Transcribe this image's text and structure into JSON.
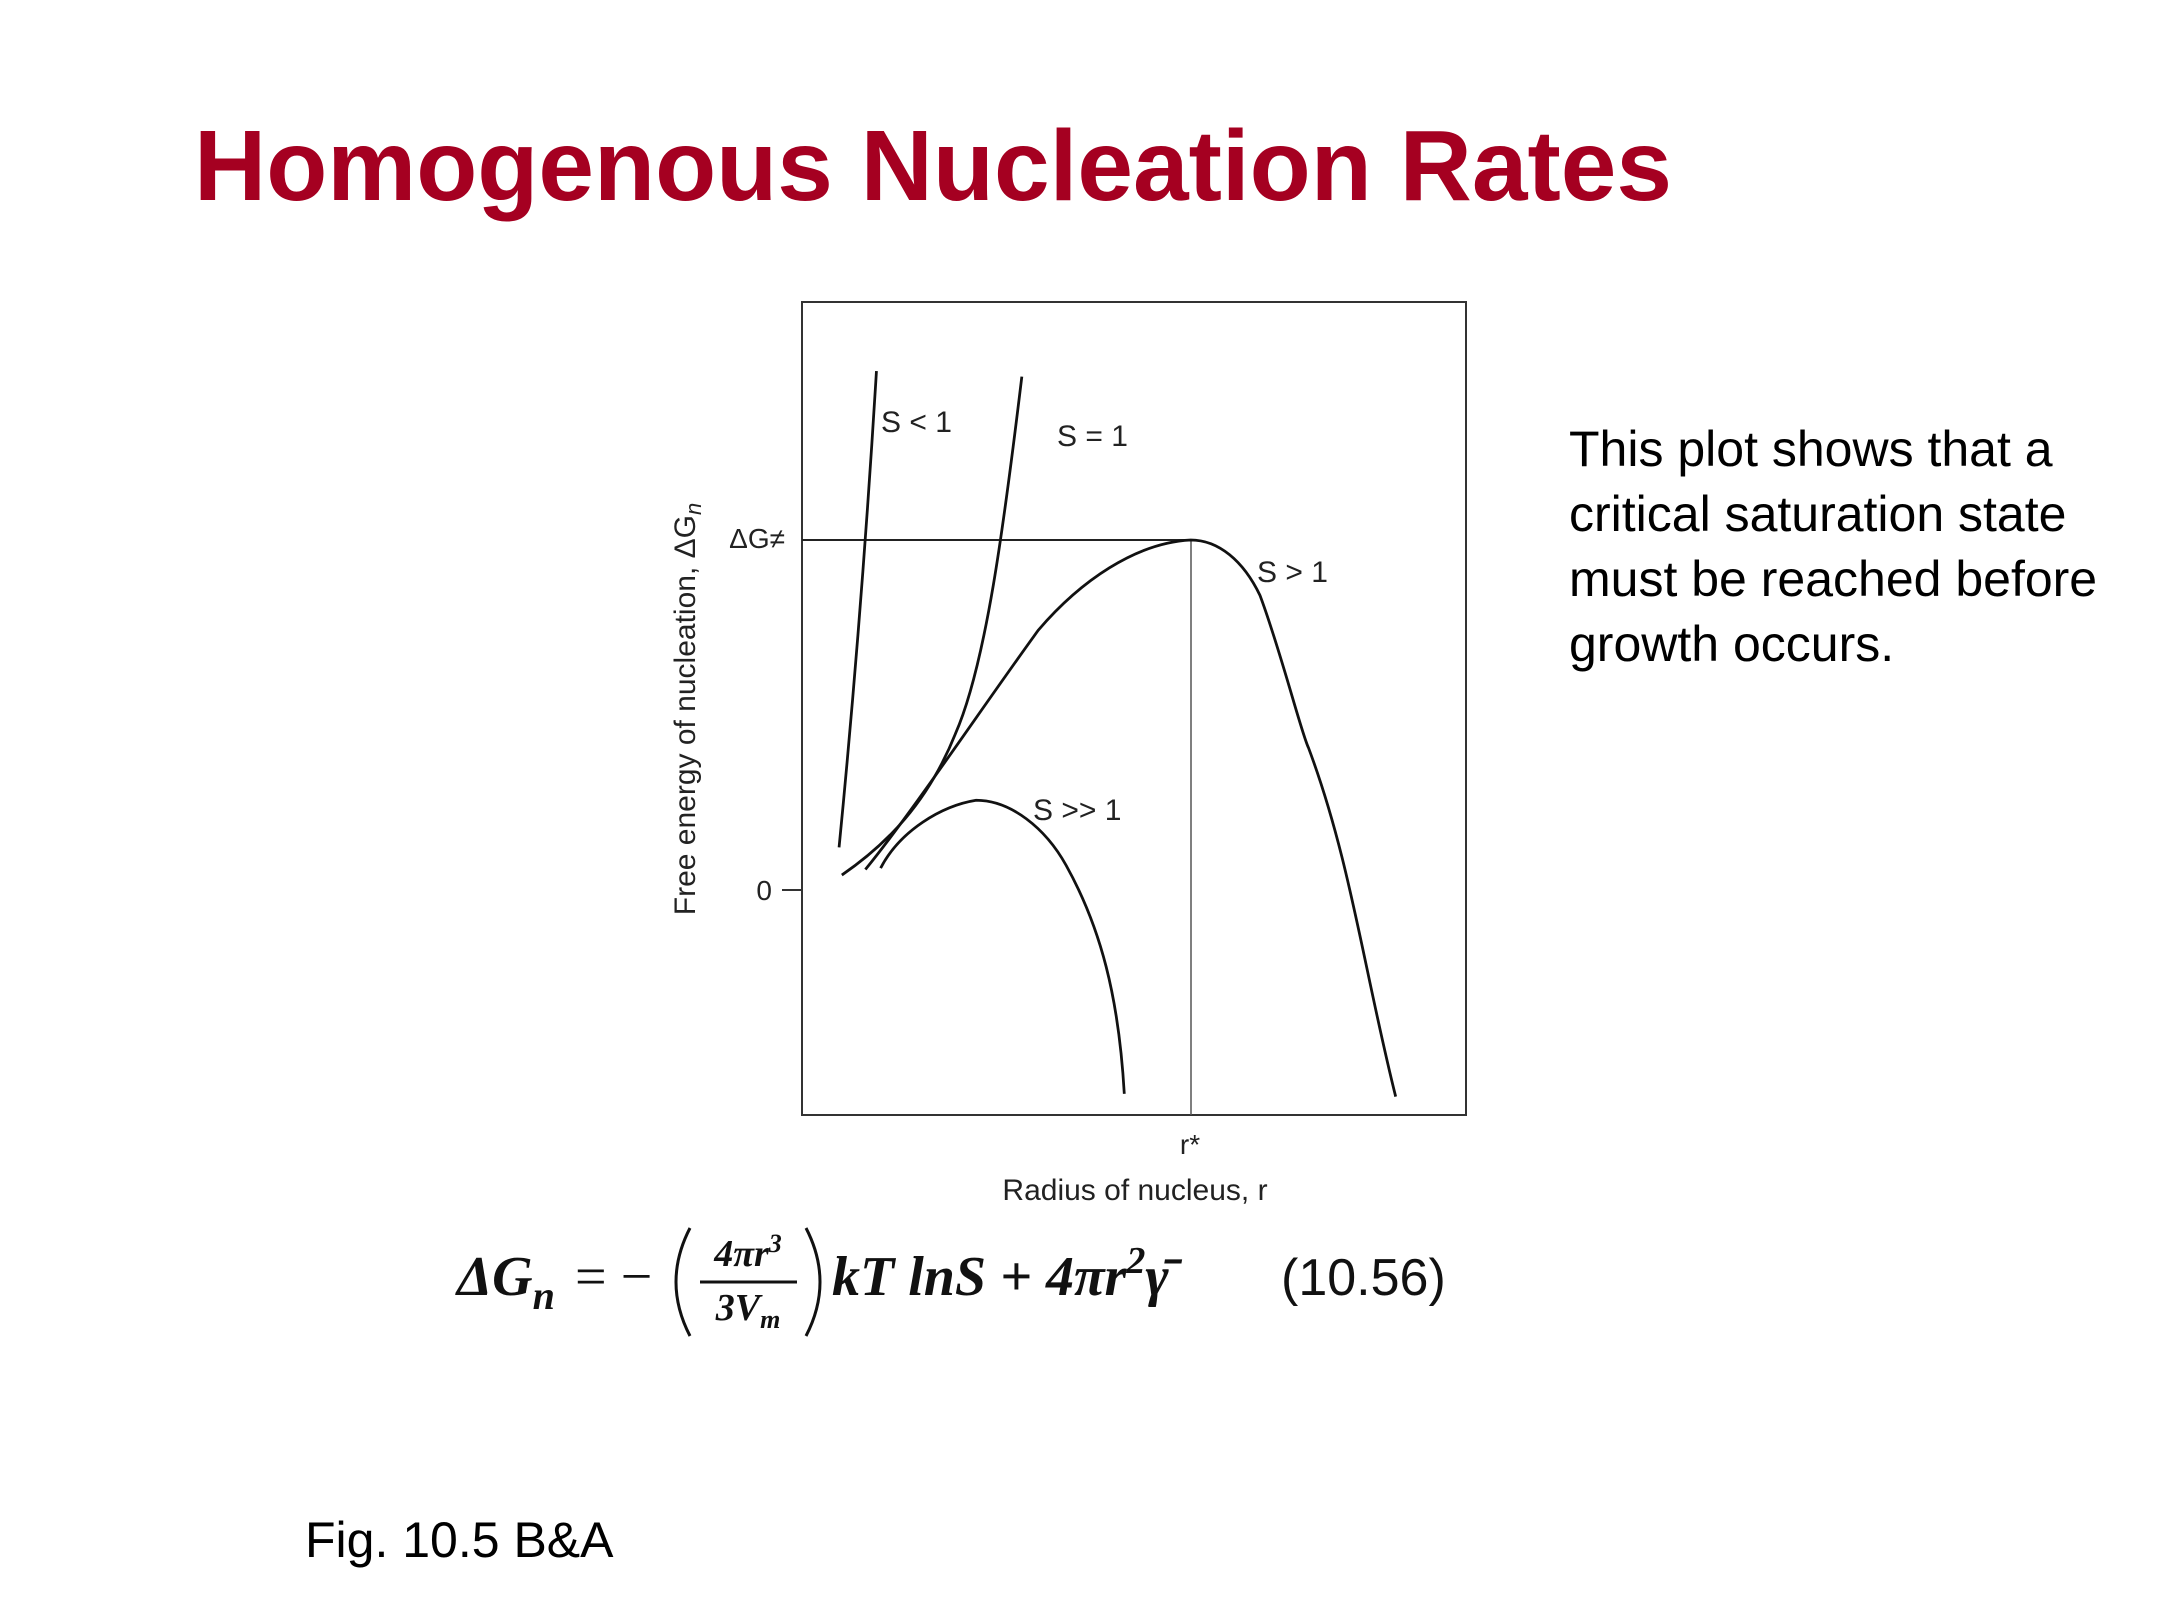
{
  "header": {
    "title": "Homogenous Nucleation Rates"
  },
  "figure": {
    "y_axis_label": "Free energy of nucleation, ΔG",
    "y_axis_label_sub": "n",
    "y_tick_barrier": "ΔG≠",
    "y_tick_zero": "0",
    "x_tick_critical": "r*",
    "x_axis_label": "Radius of nucleus, r",
    "curves": [
      "S < 1",
      "S = 1",
      "S > 1",
      "S >> 1"
    ]
  },
  "equation": {
    "lhs": "ΔG",
    "lhs_sub": "n",
    "equals": "= −",
    "numerator": "4πr",
    "numerator_sup": "3",
    "denominator": "3V",
    "denominator_sub": "m",
    "rest": "kT lnS + 4πr",
    "rest_sup": "2",
    "gamma": "γ̄",
    "number": "(10.56)"
  },
  "description": [
    "This plot shows that a",
    "critical saturation state",
    "must be reached before",
    "growth occurs."
  ],
  "caption": "Fig. 10.5 B&A"
}
